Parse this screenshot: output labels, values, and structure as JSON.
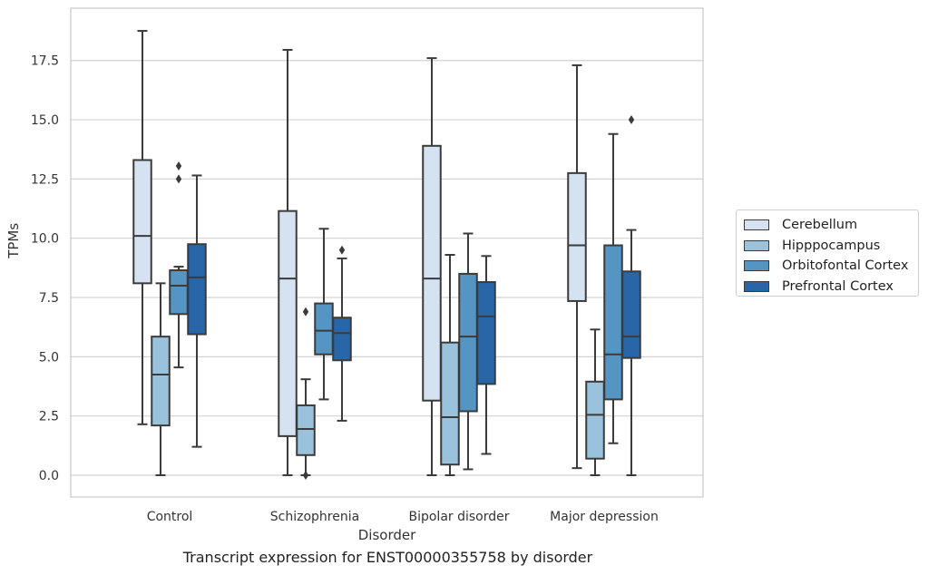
{
  "chart_data": {
    "type": "box",
    "xlabel": "Disorder",
    "ylabel": "TPMs",
    "caption": "Transcript expression for ENST00000355758 by disorder",
    "categories": [
      "Control",
      "Schizophrenia",
      "Bipolar disorder",
      "Major depression"
    ],
    "ylim": [
      -0.9,
      19.75
    ],
    "yticks": [
      "0.0",
      "2.5",
      "5.0",
      "7.5",
      "10.0",
      "12.5",
      "15.0",
      "17.5"
    ],
    "grid": true,
    "legend_position": "right",
    "series": [
      {
        "name": "Cerebellum",
        "color": "#d4e2f1",
        "boxes": [
          {
            "whislo": 2.15,
            "q1": 8.1,
            "med": 10.1,
            "q3": 13.3,
            "whishi": 18.75,
            "fliers": []
          },
          {
            "whislo": 0.0,
            "q1": 1.65,
            "med": 8.3,
            "q3": 11.15,
            "whishi": 17.95,
            "fliers": []
          },
          {
            "whislo": 0.0,
            "q1": 3.15,
            "med": 8.3,
            "q3": 13.9,
            "whishi": 17.6,
            "fliers": []
          },
          {
            "whislo": 0.3,
            "q1": 7.35,
            "med": 9.7,
            "q3": 12.75,
            "whishi": 17.3,
            "fliers": []
          }
        ]
      },
      {
        "name": "Hipppocampus",
        "color": "#9ac2dc",
        "boxes": [
          {
            "whislo": 0.0,
            "q1": 2.1,
            "med": 4.25,
            "q3": 5.85,
            "whishi": 8.1,
            "fliers": []
          },
          {
            "whislo": 0.0,
            "q1": 0.85,
            "med": 1.95,
            "q3": 2.95,
            "whishi": 4.05,
            "fliers": [
              0.0,
              6.9
            ]
          },
          {
            "whislo": 0.0,
            "q1": 0.45,
            "med": 2.45,
            "q3": 5.6,
            "whishi": 9.3,
            "fliers": []
          },
          {
            "whislo": 0.0,
            "q1": 0.7,
            "med": 2.55,
            "q3": 3.95,
            "whishi": 6.15,
            "fliers": []
          }
        ]
      },
      {
        "name": "Orbitofontal Cortex",
        "color": "#5495c3",
        "boxes": [
          {
            "whislo": 4.55,
            "q1": 6.8,
            "med": 8.0,
            "q3": 8.65,
            "whishi": 8.8,
            "fliers": [
              12.5,
              13.05
            ]
          },
          {
            "whislo": 3.2,
            "q1": 5.1,
            "med": 6.1,
            "q3": 7.25,
            "whishi": 10.4,
            "fliers": []
          },
          {
            "whislo": 0.25,
            "q1": 2.7,
            "med": 5.85,
            "q3": 8.5,
            "whishi": 10.2,
            "fliers": []
          },
          {
            "whislo": 1.35,
            "q1": 3.2,
            "med": 5.1,
            "q3": 9.7,
            "whishi": 14.4,
            "fliers": []
          }
        ]
      },
      {
        "name": "Prefrontal Cortex",
        "color": "#2866a7",
        "boxes": [
          {
            "whislo": 1.2,
            "q1": 5.95,
            "med": 8.35,
            "q3": 9.75,
            "whishi": 12.65,
            "fliers": []
          },
          {
            "whislo": 2.3,
            "q1": 4.85,
            "med": 6.0,
            "q3": 6.65,
            "whishi": 9.15,
            "fliers": [
              9.5
            ]
          },
          {
            "whislo": 0.9,
            "q1": 3.85,
            "med": 6.7,
            "q3": 8.15,
            "whishi": 9.25,
            "fliers": []
          },
          {
            "whislo": 0.0,
            "q1": 4.95,
            "med": 5.85,
            "q3": 8.6,
            "whishi": 10.35,
            "fliers": [
              15.0
            ]
          }
        ]
      }
    ]
  }
}
